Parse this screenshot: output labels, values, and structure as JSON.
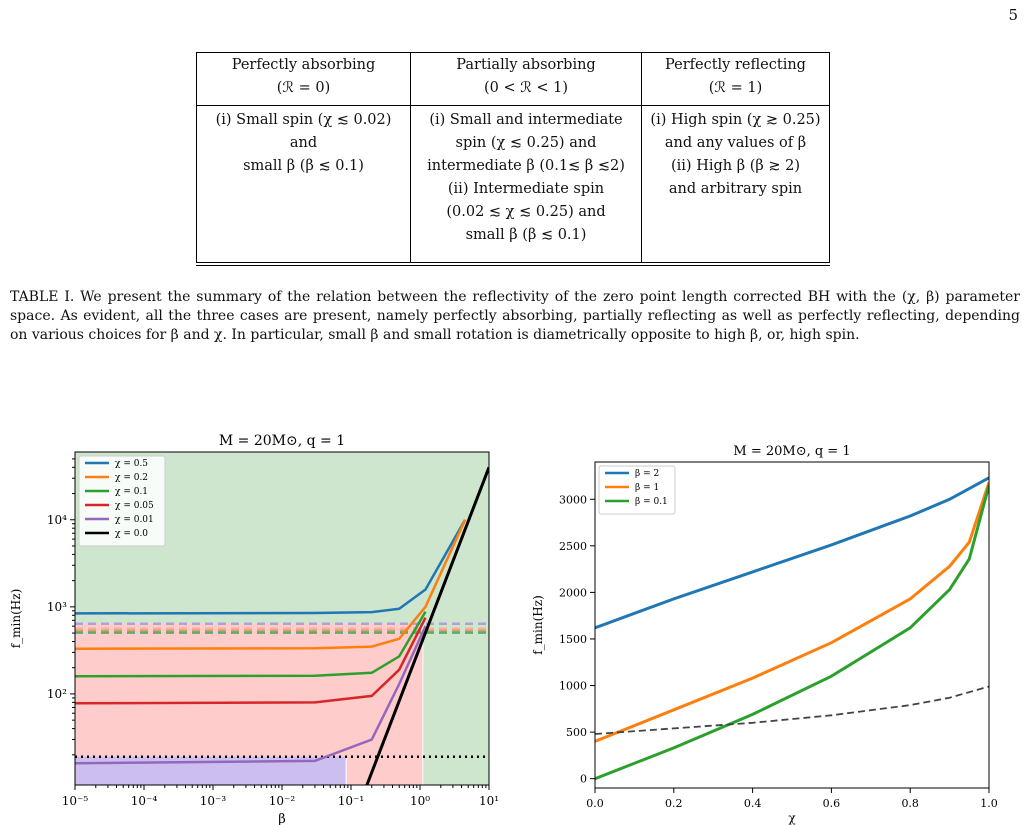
{
  "page_number": "5",
  "table": {
    "headers": [
      {
        "name": "Perfectly absorbing",
        "condition": "(ℛ = 0)"
      },
      {
        "name": "Partially absorbing",
        "condition": "(0 < ℛ < 1)"
      },
      {
        "name": "Perfectly reflecting",
        "condition": "(ℛ = 1)"
      }
    ],
    "cells": [
      [
        "(i) Small spin (χ ≲ 0.02)",
        "and",
        "small β (β ≲ 0.1)"
      ],
      [
        "(i) Small and intermediate",
        "spin (χ ≲ 0.25) and",
        "intermediate β (0.1≲ β ≲2)",
        "(ii) Intermediate spin",
        "(0.02 ≲ χ ≲ 0.25) and",
        "small β (β ≲ 0.1)"
      ],
      [
        "(i) High spin (χ ≳ 0.25)",
        "and any values of β",
        "(ii) High β (β ≳ 2)",
        "and arbitrary spin"
      ]
    ]
  },
  "caption": "TABLE I. We present the summary of the relation between the reflectivity of the zero point length corrected BH with the (χ, β) parameter space. As evident, all the three cases are present, namely perfectly absorbing, partially reflecting as well as perfectly reflecting, depending on various choices for β and χ. In particular, small β and small rotation is diametrically opposite to high β, or, high spin.",
  "chart_data": [
    {
      "type": "line",
      "title": "M = 20M⊙, q = 1",
      "xlabel": "β",
      "ylabel": "f_min(Hz)",
      "x_scale": "log",
      "y_scale": "log",
      "xlim": [
        1e-05,
        10
      ],
      "ylim": [
        9,
        60000
      ],
      "x_ticks": [
        1e-05,
        0.0001,
        0.001,
        0.01,
        0.1,
        1,
        10
      ],
      "x_tick_labels": [
        "10⁻⁵",
        "10⁻⁴",
        "10⁻³",
        "10⁻²",
        "10⁻¹",
        "10⁰",
        "10¹"
      ],
      "y_ticks": [
        100,
        1000,
        10000
      ],
      "y_tick_labels": [
        "10²",
        "10³",
        "10⁴"
      ],
      "legend_position": "top-left",
      "region_colors": {
        "perfectly_reflecting": "#cde6cd",
        "partially_absorbing": "#ffcccc",
        "perfectly_absorbing": "#cdbef0"
      },
      "series": [
        {
          "name": "χ = 0.5",
          "color": "#1f77b4",
          "x": [
            1e-05,
            0.03,
            0.2,
            0.5,
            1.2,
            4.5
          ],
          "y": [
            840,
            850,
            870,
            950,
            1580,
            10000
          ]
        },
        {
          "name": "χ = 0.2",
          "color": "#ff7f0e",
          "x": [
            1e-05,
            0.03,
            0.2,
            0.5,
            1.2,
            4.5
          ],
          "y": [
            330,
            335,
            350,
            430,
            1000,
            10000
          ]
        },
        {
          "name": "χ = 0.1",
          "color": "#2ca02c",
          "x": [
            1e-05,
            0.03,
            0.2,
            0.5,
            1.2
          ],
          "y": [
            160,
            162,
            175,
            270,
            880
          ]
        },
        {
          "name": "χ = 0.05",
          "color": "#d62728",
          "x": [
            1e-05,
            0.03,
            0.2,
            0.5,
            1.2
          ],
          "y": [
            78,
            80,
            95,
            190,
            750
          ]
        },
        {
          "name": "χ = 0.01",
          "color": "#9467bd",
          "x": [
            1e-05,
            0.03,
            0.2,
            0.5,
            1.2
          ],
          "y": [
            16,
            17,
            30,
            130,
            600
          ]
        },
        {
          "name": "χ = 0.0",
          "color": "#000000",
          "x": [
            0.17,
            10
          ],
          "y": [
            9,
            40000
          ]
        }
      ],
      "reference_lines": [
        {
          "style": "dashed",
          "color": "#b19fe0",
          "y": 640
        },
        {
          "style": "dashed",
          "color": "#ffb27a",
          "y": 560
        },
        {
          "style": "dashed",
          "color": "#d99999",
          "y": 530
        },
        {
          "style": "dashed",
          "color": "#5fae5f",
          "y": 505
        },
        {
          "style": "dotted",
          "color": "#000000",
          "y": 19
        }
      ],
      "boundaries": {
        "absorbing_beta": 0.085,
        "reflecting_beta": 1.1
      }
    },
    {
      "type": "line",
      "title": "M = 20M⊙, q = 1",
      "xlabel": "χ",
      "ylabel": "f_min(Hz)",
      "xlim": [
        0,
        1
      ],
      "ylim": [
        -100,
        3400
      ],
      "x_ticks": [
        0,
        0.2,
        0.4,
        0.6,
        0.8,
        1.0
      ],
      "x_tick_labels": [
        "0.0",
        "0.2",
        "0.4",
        "0.6",
        "0.8",
        "1.0"
      ],
      "y_ticks": [
        0,
        500,
        1000,
        1500,
        2000,
        2500,
        3000
      ],
      "y_tick_labels": [
        "0",
        "500",
        "1000",
        "1500",
        "2000",
        "2500",
        "3000"
      ],
      "legend_position": "top-left",
      "series": [
        {
          "name": "β = 2",
          "color": "#1f77b4",
          "x": [
            0,
            0.2,
            0.4,
            0.6,
            0.8,
            0.9,
            1.0
          ],
          "y": [
            1620,
            1930,
            2220,
            2510,
            2820,
            3000,
            3230
          ]
        },
        {
          "name": "β = 1",
          "color": "#ff7f0e",
          "x": [
            0,
            0.2,
            0.4,
            0.6,
            0.8,
            0.9,
            0.95,
            1.0
          ],
          "y": [
            400,
            740,
            1080,
            1460,
            1930,
            2280,
            2540,
            3180
          ]
        },
        {
          "name": "β = 0.1",
          "color": "#2ca02c",
          "x": [
            0,
            0.2,
            0.4,
            0.6,
            0.8,
            0.9,
            0.95,
            1.0
          ],
          "y": [
            0,
            330,
            690,
            1100,
            1620,
            2030,
            2360,
            3150
          ]
        },
        {
          "name": "",
          "color": "#444444",
          "dashed": true,
          "x": [
            0,
            0.2,
            0.4,
            0.6,
            0.8,
            0.9,
            1.0
          ],
          "y": [
            480,
            540,
            600,
            680,
            790,
            870,
            990
          ]
        }
      ]
    }
  ]
}
